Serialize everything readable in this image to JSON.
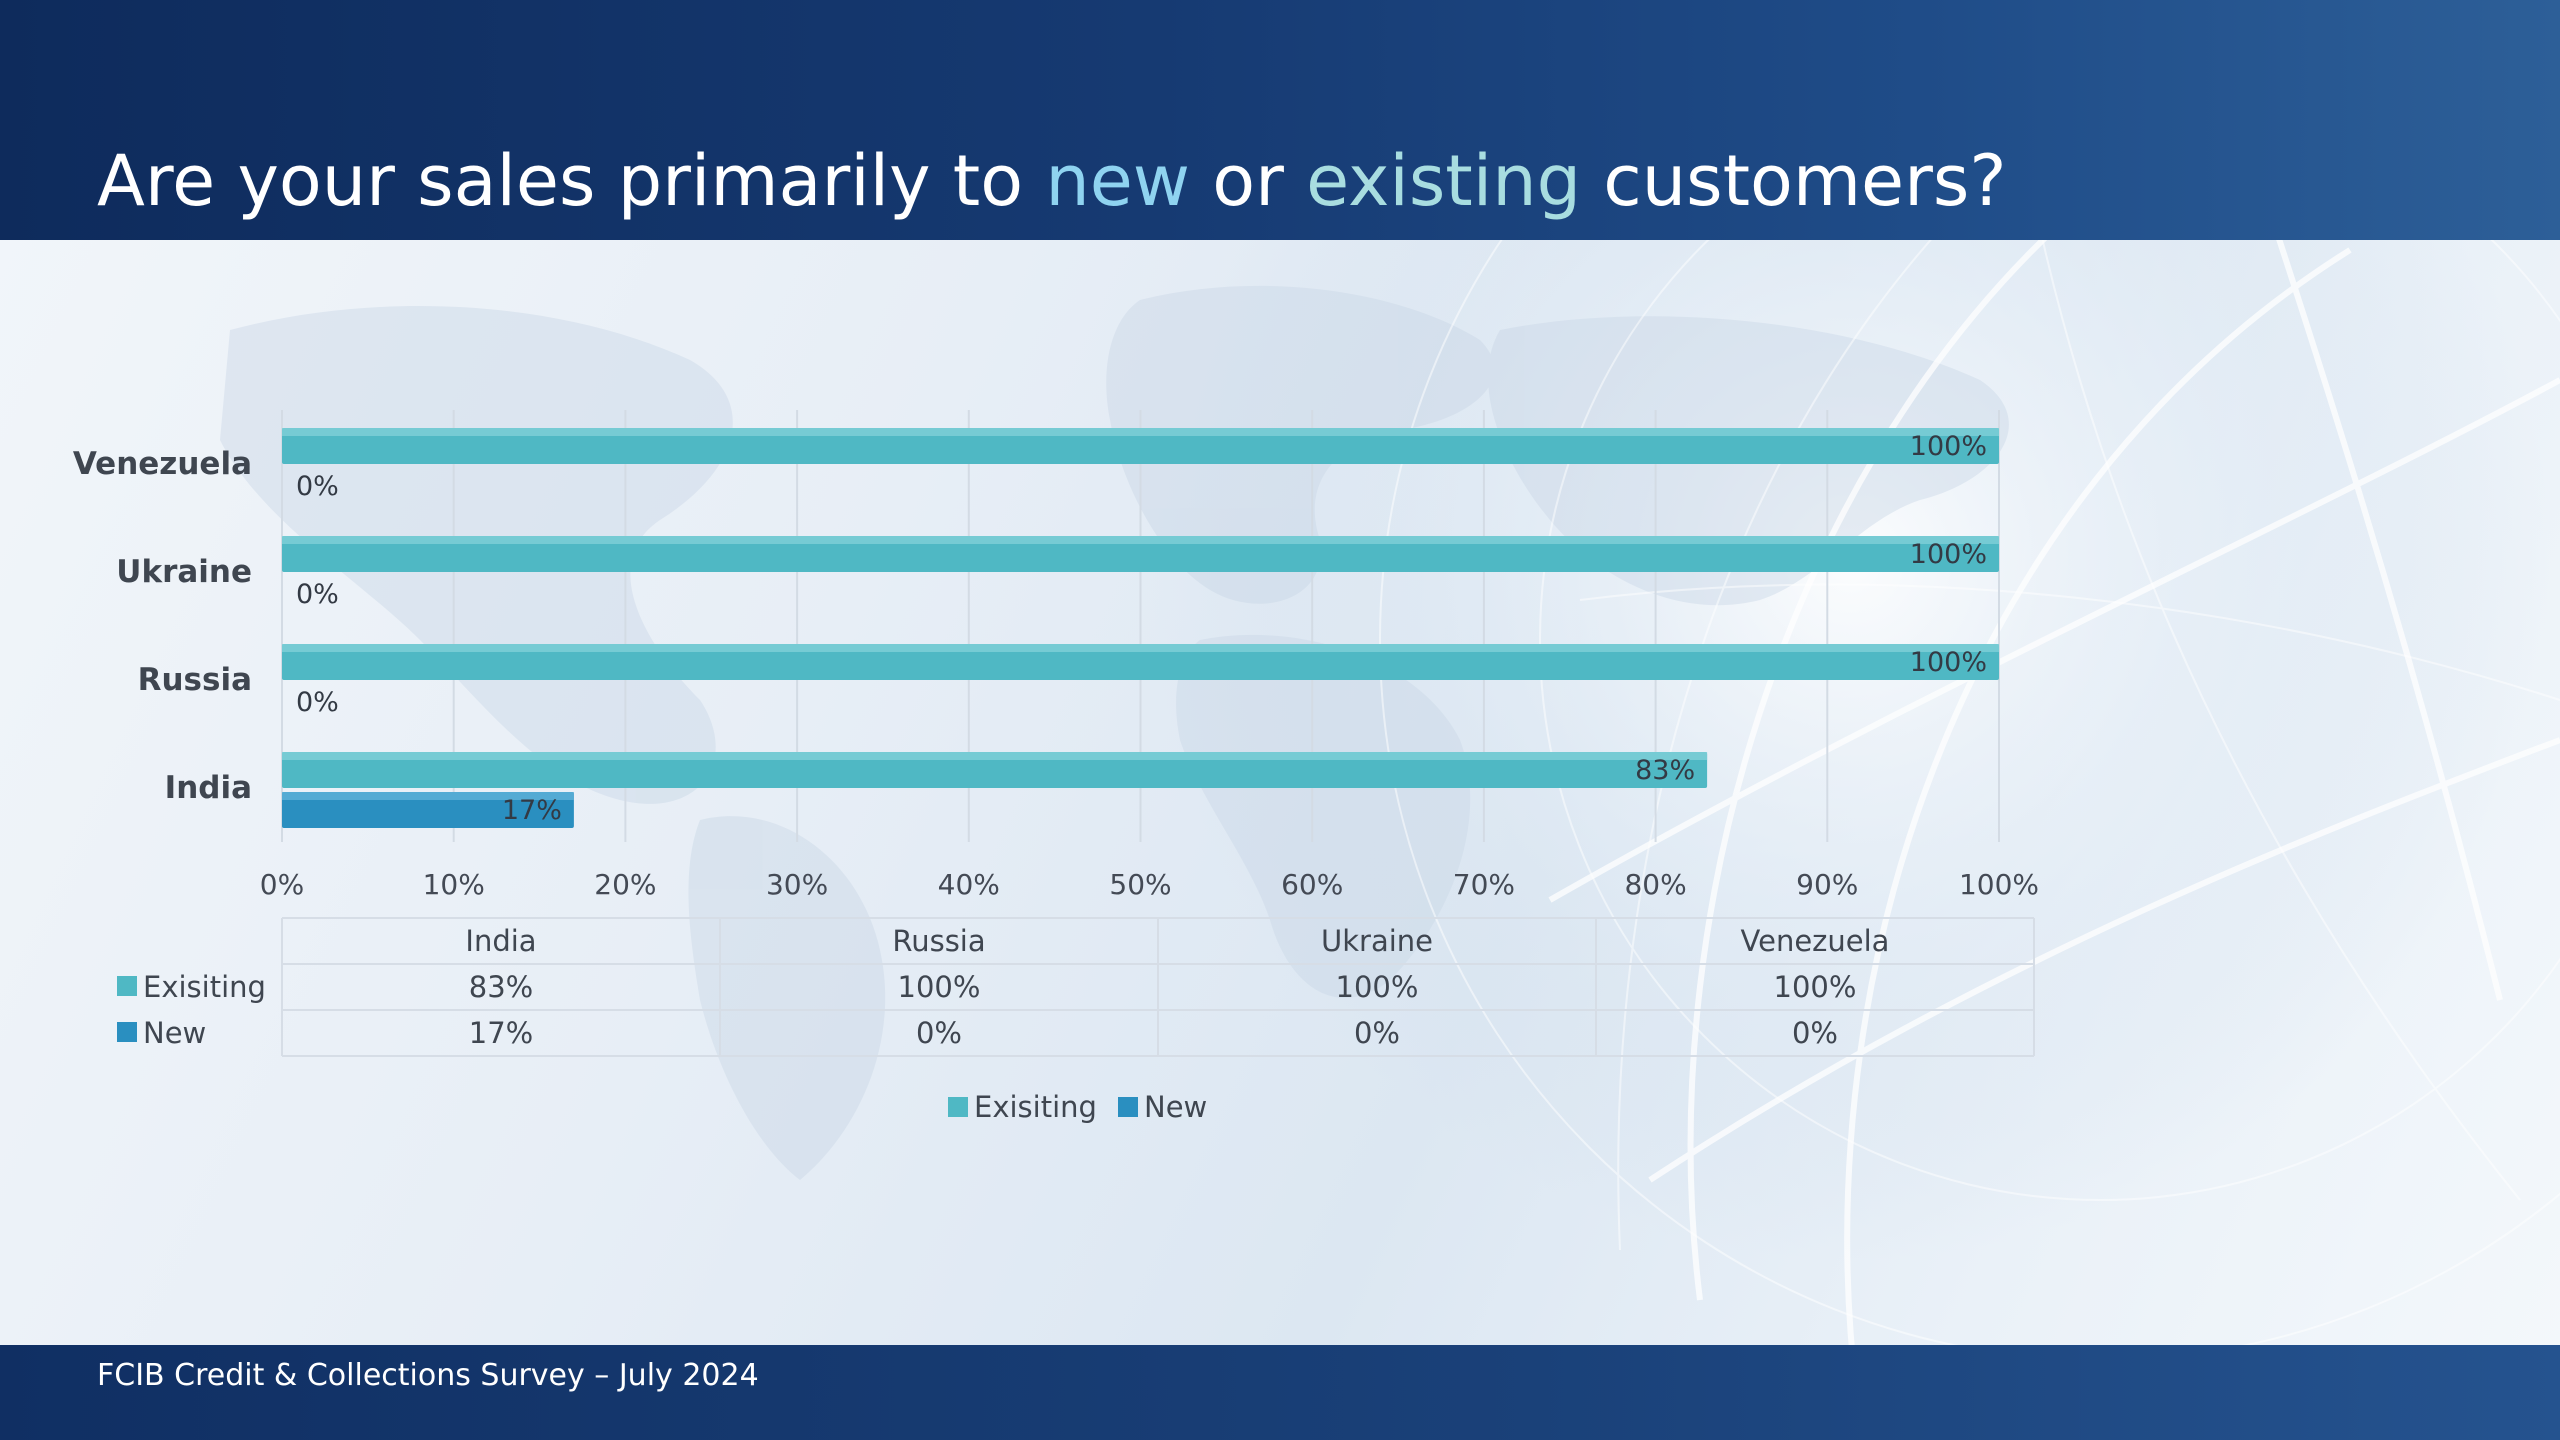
{
  "title": {
    "part1": "Are your sales primarily to ",
    "highlight_new": "new",
    "part2": " or ",
    "highlight_existing": "existing",
    "part3": " customers?"
  },
  "footer": "FCIB Credit & Collections Survey – July 2024",
  "colors": {
    "existing": "#4fb8c4",
    "new": "#2a8fc0",
    "header": "#163a72",
    "footer": "#1a4179"
  },
  "chart_data": {
    "type": "bar",
    "orientation": "horizontal",
    "categories": [
      "India",
      "Russia",
      "Ukraine",
      "Venezuela"
    ],
    "series": [
      {
        "name": "Exisiting",
        "values": [
          83,
          100,
          100,
          100
        ],
        "labels": [
          "83%",
          "100%",
          "100%",
          "100%"
        ]
      },
      {
        "name": "New",
        "values": [
          17,
          0,
          0,
          0
        ],
        "labels": [
          "17%",
          "0%",
          "0%",
          "0%"
        ]
      }
    ],
    "x_ticks": [
      "0%",
      "10%",
      "20%",
      "30%",
      "40%",
      "50%",
      "60%",
      "70%",
      "80%",
      "90%",
      "100%"
    ],
    "xlim": [
      0,
      100
    ],
    "grid": true,
    "data_table": true,
    "legend": "bottom-center"
  }
}
